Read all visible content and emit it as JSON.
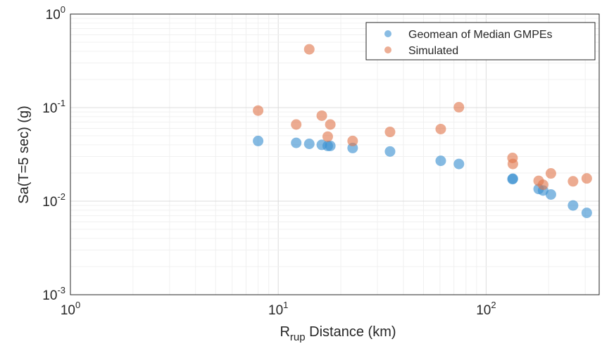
{
  "chart_data": {
    "type": "scatter",
    "title": "",
    "xlabel": {
      "main": "R",
      "sub": "rup",
      "rest": " Distance (km)"
    },
    "ylabel": "Sa(T=5 sec) (g)",
    "xscale": "log",
    "yscale": "log",
    "xlim": [
      1,
      350
    ],
    "ylim": [
      0.001,
      1
    ],
    "grid": true,
    "minor_grid": true,
    "legend_position": "top-right",
    "xticks": [
      {
        "base": "10",
        "exp": "0",
        "value": 1
      },
      {
        "base": "10",
        "exp": "1",
        "value": 10
      },
      {
        "base": "10",
        "exp": "2",
        "value": 100
      }
    ],
    "yticks": [
      {
        "base": "10",
        "exp": "-3",
        "value": 0.001
      },
      {
        "base": "10",
        "exp": "-2",
        "value": 0.01
      },
      {
        "base": "10",
        "exp": "-1",
        "value": 0.1
      },
      {
        "base": "10",
        "exp": "0",
        "value": 1
      }
    ],
    "series": [
      {
        "name": "Geomean of Median GMPEs",
        "color": "#3a8fd1",
        "points": [
          {
            "x": 8.0,
            "y": 0.044
          },
          {
            "x": 12.2,
            "y": 0.042
          },
          {
            "x": 14.1,
            "y": 0.041
          },
          {
            "x": 16.2,
            "y": 0.04
          },
          {
            "x": 17.3,
            "y": 0.039
          },
          {
            "x": 17.8,
            "y": 0.039
          },
          {
            "x": 22.8,
            "y": 0.037
          },
          {
            "x": 34.5,
            "y": 0.034
          },
          {
            "x": 60.5,
            "y": 0.027
          },
          {
            "x": 74.0,
            "y": 0.025
          },
          {
            "x": 134,
            "y": 0.0172
          },
          {
            "x": 134.5,
            "y": 0.0174
          },
          {
            "x": 179,
            "y": 0.0135
          },
          {
            "x": 188,
            "y": 0.013
          },
          {
            "x": 205,
            "y": 0.0118
          },
          {
            "x": 262,
            "y": 0.009
          },
          {
            "x": 305,
            "y": 0.0075
          }
        ]
      },
      {
        "name": "Simulated",
        "color": "#e0784e",
        "points": [
          {
            "x": 8.0,
            "y": 0.093
          },
          {
            "x": 12.2,
            "y": 0.066
          },
          {
            "x": 14.1,
            "y": 0.42
          },
          {
            "x": 16.2,
            "y": 0.082
          },
          {
            "x": 17.3,
            "y": 0.049
          },
          {
            "x": 17.8,
            "y": 0.066
          },
          {
            "x": 22.8,
            "y": 0.044
          },
          {
            "x": 34.5,
            "y": 0.055
          },
          {
            "x": 60.5,
            "y": 0.059
          },
          {
            "x": 74.0,
            "y": 0.101
          },
          {
            "x": 134,
            "y": 0.029
          },
          {
            "x": 134.5,
            "y": 0.025
          },
          {
            "x": 179,
            "y": 0.0165
          },
          {
            "x": 188,
            "y": 0.015
          },
          {
            "x": 205,
            "y": 0.0198
          },
          {
            "x": 262,
            "y": 0.0163
          },
          {
            "x": 305,
            "y": 0.0175
          }
        ]
      }
    ]
  }
}
